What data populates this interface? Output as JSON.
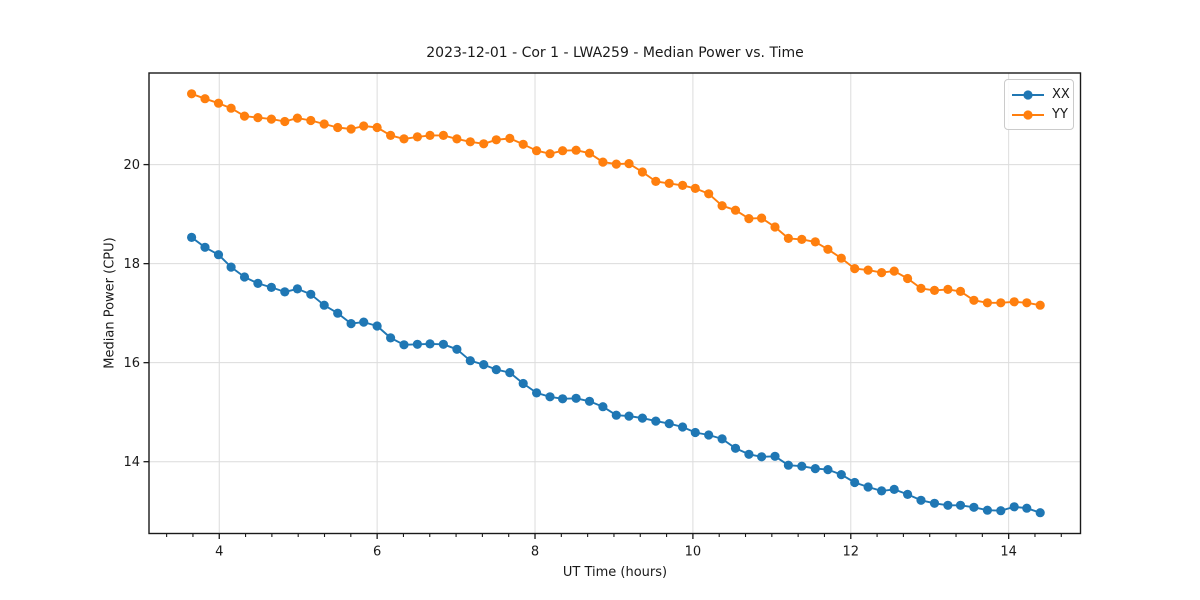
{
  "chart_data": {
    "type": "line",
    "title": "2023-12-01 - Cor 1 - LWA259 - Median Power vs. Time",
    "xlabel": "UT Time (hours)",
    "ylabel": "Median Power (CPU)",
    "xlim": [
      3.11,
      14.91
    ],
    "ylim": [
      12.55,
      21.85
    ],
    "x_ticks": [
      4,
      6,
      8,
      10,
      12,
      14
    ],
    "y_ticks": [
      14,
      16,
      18,
      20
    ],
    "x_minor_tick_step": 0.33333,
    "grid": "major",
    "grid_color": "#dcdcdc",
    "legend_position": "upper right",
    "x": [
      3.65,
      3.82,
      3.99,
      4.15,
      4.32,
      4.49,
      4.66,
      4.83,
      4.99,
      5.16,
      5.33,
      5.5,
      5.67,
      5.83,
      6.0,
      6.17,
      6.34,
      6.51,
      6.67,
      6.84,
      7.01,
      7.18,
      7.35,
      7.51,
      7.68,
      7.85,
      8.02,
      8.19,
      8.35,
      8.52,
      8.69,
      8.86,
      9.03,
      9.19,
      9.36,
      9.53,
      9.7,
      9.87,
      10.03,
      10.2,
      10.37,
      10.54,
      10.71,
      10.87,
      11.04,
      11.21,
      11.38,
      11.55,
      11.71,
      11.88,
      12.05,
      12.22,
      12.39,
      12.55,
      12.72,
      12.89,
      13.06,
      13.23,
      13.39,
      13.56,
      13.73,
      13.9,
      14.07,
      14.23,
      14.4
    ],
    "series": [
      {
        "name": "XX",
        "color": "#1f77b4",
        "marker": "circle",
        "values": [
          18.53,
          18.33,
          18.18,
          17.93,
          17.73,
          17.6,
          17.52,
          17.43,
          17.49,
          17.38,
          17.16,
          17.0,
          16.79,
          16.82,
          16.74,
          16.5,
          16.36,
          16.37,
          16.38,
          16.37,
          16.27,
          16.04,
          15.96,
          15.86,
          15.8,
          15.58,
          15.39,
          15.31,
          15.27,
          15.28,
          15.22,
          15.11,
          14.94,
          14.92,
          14.88,
          14.82,
          14.77,
          14.7,
          14.59,
          14.54,
          14.46,
          14.27,
          14.15,
          14.1,
          14.11,
          13.93,
          13.91,
          13.86,
          13.84,
          13.74,
          13.58,
          13.49,
          13.41,
          13.44,
          13.34,
          13.22,
          13.16,
          13.12,
          13.12,
          13.08,
          13.02,
          13.01,
          13.09,
          13.06,
          12.97
        ]
      },
      {
        "name": "YY",
        "color": "#ff7f0e",
        "marker": "circle",
        "values": [
          21.43,
          21.33,
          21.24,
          21.14,
          20.98,
          20.95,
          20.92,
          20.87,
          20.94,
          20.89,
          20.82,
          20.75,
          20.72,
          20.78,
          20.75,
          20.59,
          20.52,
          20.56,
          20.59,
          20.59,
          20.52,
          20.46,
          20.42,
          20.5,
          20.53,
          20.41,
          20.28,
          20.22,
          20.28,
          20.29,
          20.23,
          20.05,
          20.01,
          20.02,
          19.85,
          19.66,
          19.62,
          19.58,
          19.52,
          19.41,
          19.17,
          19.08,
          18.91,
          18.92,
          18.74,
          18.51,
          18.49,
          18.44,
          18.29,
          18.11,
          17.9,
          17.87,
          17.82,
          17.85,
          17.7,
          17.5,
          17.46,
          17.48,
          17.44,
          17.26,
          17.21,
          17.21,
          17.23,
          17.21,
          17.16
        ]
      }
    ]
  }
}
